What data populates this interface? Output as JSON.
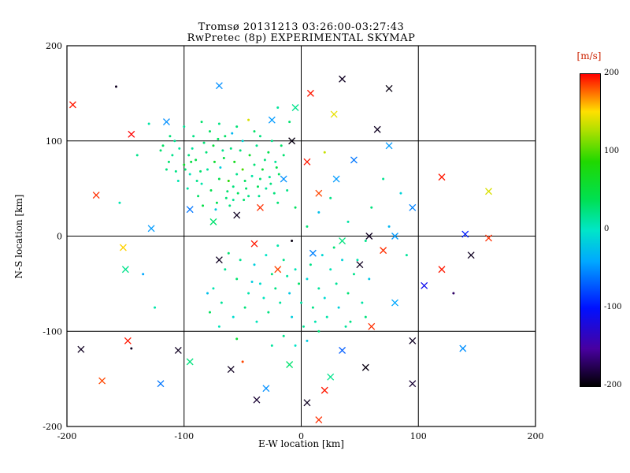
{
  "chart_data": {
    "type": "scatter",
    "title": "Tromsø 20131213 03:26:00-03:27:43",
    "subtitle": "RwPretec (8p) EXPERIMENTAL SKYMAP",
    "xlabel": "E-W location [km]",
    "ylabel": "N-S location [km]",
    "xlim": [
      -200,
      200
    ],
    "ylim": [
      -200,
      200
    ],
    "xticks": [
      -200,
      -100,
      0,
      100,
      200
    ],
    "yticks": [
      -200,
      -100,
      0,
      100,
      200
    ],
    "grid": true,
    "axis_color": "#000000",
    "background_color": "#ffffff",
    "marker_legend": {
      "d": "small dot echo",
      "x": "cross echo"
    },
    "colorbar": {
      "label": "[m/s]",
      "label_color": "#cc2200",
      "min": -200,
      "max": 200,
      "ticks": [
        200,
        100,
        0,
        -100,
        -200
      ],
      "stops": [
        [
          0.0,
          "#000000"
        ],
        [
          0.12,
          "#4800a0"
        ],
        [
          0.25,
          "#0010ff"
        ],
        [
          0.4,
          "#00a8ff"
        ],
        [
          0.5,
          "#00e6c8"
        ],
        [
          0.6,
          "#00e050"
        ],
        [
          0.72,
          "#20d800"
        ],
        [
          0.82,
          "#b0e000"
        ],
        [
          0.88,
          "#ffe000"
        ],
        [
          0.94,
          "#ff7000"
        ],
        [
          1.0,
          "#ff0000"
        ]
      ]
    },
    "points": [
      [
        -63,
        47,
        30,
        "d"
      ],
      [
        -58,
        52,
        25,
        "d"
      ],
      [
        -70,
        60,
        40,
        "d"
      ],
      [
        -55,
        65,
        20,
        "d"
      ],
      [
        -48,
        58,
        35,
        "d"
      ],
      [
        -80,
        70,
        15,
        "d"
      ],
      [
        -90,
        80,
        45,
        "d"
      ],
      [
        -40,
        75,
        28,
        "d"
      ],
      [
        -66,
        82,
        48,
        "d"
      ],
      [
        -52,
        90,
        26,
        "d"
      ],
      [
        -75,
        95,
        50,
        "d"
      ],
      [
        -85,
        55,
        10,
        "d"
      ],
      [
        -95,
        65,
        5,
        "d"
      ],
      [
        -100,
        75,
        60,
        "d"
      ],
      [
        -110,
        85,
        20,
        "d"
      ],
      [
        -35,
        60,
        28,
        "d"
      ],
      [
        -30,
        50,
        15,
        "d"
      ],
      [
        -45,
        42,
        22,
        "d"
      ],
      [
        -58,
        38,
        18,
        "d"
      ],
      [
        -72,
        35,
        40,
        "d"
      ],
      [
        -88,
        42,
        33,
        "d"
      ],
      [
        -97,
        50,
        12,
        "d"
      ],
      [
        -105,
        58,
        8,
        "d"
      ],
      [
        -115,
        70,
        25,
        "d"
      ],
      [
        -120,
        90,
        30,
        "d"
      ],
      [
        -108,
        100,
        18,
        "d"
      ],
      [
        -92,
        105,
        22,
        "d"
      ],
      [
        -78,
        110,
        35,
        "d"
      ],
      [
        -65,
        105,
        33,
        "d"
      ],
      [
        -50,
        100,
        -10,
        "d"
      ],
      [
        -38,
        95,
        20,
        "d"
      ],
      [
        -28,
        88,
        42,
        "d"
      ],
      [
        -22,
        78,
        16,
        "d"
      ],
      [
        -33,
        70,
        55,
        "d"
      ],
      [
        -44,
        85,
        60,
        "d"
      ],
      [
        -57,
        78,
        70,
        "d"
      ],
      [
        -69,
        72,
        -15,
        "d"
      ],
      [
        -81,
        88,
        26,
        "d"
      ],
      [
        -93,
        92,
        14,
        "d"
      ],
      [
        -62,
        58,
        90,
        "d"
      ],
      [
        -47,
        50,
        31,
        "d"
      ],
      [
        -36,
        42,
        19,
        "d"
      ],
      [
        -26,
        55,
        24,
        "d"
      ],
      [
        -19,
        65,
        37,
        "d"
      ],
      [
        -15,
        85,
        29,
        "d"
      ],
      [
        -25,
        100,
        21,
        "d"
      ],
      [
        -40,
        110,
        33,
        "d"
      ],
      [
        -55,
        115,
        27,
        "d"
      ],
      [
        -70,
        118,
        23,
        "d"
      ],
      [
        -85,
        120,
        31,
        "d"
      ],
      [
        -100,
        115,
        17,
        "d"
      ],
      [
        -112,
        105,
        26,
        "d"
      ],
      [
        -118,
        95,
        34,
        "d"
      ],
      [
        -60,
        92,
        24,
        "d"
      ],
      [
        -50,
        70,
        100,
        "d"
      ],
      [
        -42,
        63,
        12,
        "d"
      ],
      [
        -67,
        90,
        20,
        "d"
      ],
      [
        -74,
        78,
        60,
        "d"
      ],
      [
        -86,
        68,
        30,
        "d"
      ],
      [
        -96,
        85,
        25,
        "d"
      ],
      [
        -104,
        92,
        15,
        "d"
      ],
      [
        -54,
        45,
        35,
        "d"
      ],
      [
        -64,
        40,
        28,
        "d"
      ],
      [
        -77,
        48,
        42,
        "d"
      ],
      [
        -89,
        58,
        20,
        "d"
      ],
      [
        -99,
        70,
        30,
        "d"
      ],
      [
        -31,
        80,
        26,
        "d"
      ],
      [
        -21,
        72,
        44,
        "d"
      ],
      [
        -17,
        95,
        32,
        "d"
      ],
      [
        -45,
        122,
        140,
        "d"
      ],
      [
        -35,
        105,
        24,
        "d"
      ],
      [
        -59,
        108,
        -30,
        "d"
      ],
      [
        -71,
        102,
        36,
        "d"
      ],
      [
        -83,
        98,
        28,
        "d"
      ],
      [
        -94,
        78,
        48,
        "d"
      ],
      [
        -107,
        68,
        22,
        "d"
      ],
      [
        -113,
        78,
        30,
        "d"
      ],
      [
        -27,
        62,
        18,
        "d"
      ],
      [
        -23,
        45,
        26,
        "d"
      ],
      [
        -37,
        52,
        38,
        "d"
      ],
      [
        -49,
        38,
        30,
        "d"
      ],
      [
        -61,
        32,
        24,
        "d"
      ],
      [
        -73,
        28,
        -20,
        "d"
      ],
      [
        -84,
        32,
        46,
        "d"
      ],
      [
        -20,
        35,
        28,
        "d"
      ],
      [
        -12,
        48,
        22,
        "d"
      ],
      [
        -20,
        -10,
        10,
        "d"
      ],
      [
        -30,
        -20,
        0,
        "d"
      ],
      [
        -40,
        -30,
        -15,
        "d"
      ],
      [
        -15,
        -25,
        20,
        "d"
      ],
      [
        -5,
        -35,
        5,
        "d"
      ],
      [
        5,
        -45,
        -10,
        "d"
      ],
      [
        15,
        -55,
        15,
        "d"
      ],
      [
        -25,
        -40,
        25,
        "d"
      ],
      [
        -35,
        -50,
        -5,
        "d"
      ],
      [
        -45,
        -60,
        10,
        "d"
      ],
      [
        -55,
        -45,
        30,
        "d"
      ],
      [
        -65,
        -35,
        18,
        "d"
      ],
      [
        -75,
        -55,
        8,
        "d"
      ],
      [
        -10,
        -60,
        -20,
        "d"
      ],
      [
        0,
        -70,
        12,
        "d"
      ],
      [
        10,
        -75,
        22,
        "d"
      ],
      [
        20,
        -65,
        -8,
        "d"
      ],
      [
        30,
        -50,
        16,
        "d"
      ],
      [
        40,
        -60,
        28,
        "d"
      ],
      [
        25,
        -35,
        6,
        "d"
      ],
      [
        35,
        -25,
        -12,
        "d"
      ],
      [
        45,
        -40,
        20,
        "d"
      ],
      [
        -18,
        -70,
        14,
        "d"
      ],
      [
        -28,
        -80,
        24,
        "d"
      ],
      [
        -38,
        -90,
        4,
        "d"
      ],
      [
        -8,
        -85,
        -16,
        "d"
      ],
      [
        2,
        -95,
        18,
        "d"
      ],
      [
        12,
        -90,
        8,
        "d"
      ],
      [
        -48,
        -75,
        26,
        "d"
      ],
      [
        -58,
        -85,
        -6,
        "d"
      ],
      [
        -68,
        -70,
        16,
        "d"
      ],
      [
        -78,
        -80,
        36,
        "d"
      ],
      [
        22,
        -85,
        10,
        "d"
      ],
      [
        32,
        -75,
        -14,
        "d"
      ],
      [
        42,
        -90,
        22,
        "d"
      ],
      [
        52,
        -70,
        12,
        "d"
      ],
      [
        -15,
        -105,
        20,
        "d"
      ],
      [
        -5,
        -115,
        0,
        "d"
      ],
      [
        5,
        -110,
        -18,
        "d"
      ],
      [
        15,
        -100,
        26,
        "d"
      ],
      [
        -25,
        -115,
        14,
        "d"
      ],
      [
        -55,
        -108,
        55,
        "d"
      ],
      [
        -2,
        -50,
        33,
        "d"
      ],
      [
        8,
        -30,
        21,
        "d"
      ],
      [
        18,
        -20,
        -9,
        "d"
      ],
      [
        28,
        -12,
        27,
        "d"
      ],
      [
        -12,
        -42,
        13,
        "d"
      ],
      [
        -22,
        -55,
        23,
        "d"
      ],
      [
        -32,
        -65,
        3,
        "d"
      ],
      [
        -42,
        -48,
        -17,
        "d"
      ],
      [
        -52,
        -25,
        19,
        "d"
      ],
      [
        -62,
        -18,
        29,
        "d"
      ],
      [
        48,
        -25,
        9,
        "d"
      ],
      [
        58,
        -45,
        -21,
        "d"
      ],
      [
        38,
        -95,
        15,
        "d"
      ],
      [
        55,
        -85,
        25,
        "d"
      ],
      [
        -70,
        -95,
        5,
        "d"
      ],
      [
        -80,
        -60,
        -25,
        "d"
      ],
      [
        -140,
        85,
        20,
        "d"
      ],
      [
        -135,
        -40,
        -40,
        "d"
      ],
      [
        -125,
        -75,
        10,
        "d"
      ],
      [
        60,
        30,
        25,
        "d"
      ],
      [
        75,
        10,
        -30,
        "d"
      ],
      [
        90,
        -20,
        15,
        "d"
      ],
      [
        70,
        60,
        18,
        "d"
      ],
      [
        85,
        45,
        -12,
        "d"
      ],
      [
        -155,
        35,
        8,
        "d"
      ],
      [
        25,
        40,
        22,
        "d"
      ],
      [
        15,
        25,
        -25,
        "d"
      ],
      [
        40,
        15,
        12,
        "d"
      ],
      [
        55,
        -5,
        20,
        "d"
      ],
      [
        -5,
        30,
        35,
        "d"
      ],
      [
        5,
        10,
        28,
        "d"
      ],
      [
        -10,
        120,
        30,
        "d"
      ],
      [
        -20,
        135,
        15,
        "d"
      ],
      [
        -8,
        -5,
        -195,
        "d"
      ],
      [
        20,
        88,
        135,
        "d"
      ],
      [
        -50,
        -132,
        185,
        "d"
      ],
      [
        -158,
        157,
        -190,
        "d"
      ],
      [
        -145,
        -118,
        -190,
        "d"
      ],
      [
        130,
        -60,
        -170,
        "d"
      ],
      [
        -130,
        118,
        12,
        "d"
      ],
      [
        -195,
        138,
        195,
        "x"
      ],
      [
        -145,
        107,
        200,
        "x"
      ],
      [
        -175,
        43,
        190,
        "x"
      ],
      [
        -128,
        8,
        -45,
        "x"
      ],
      [
        -150,
        -35,
        20,
        "x"
      ],
      [
        -170,
        -152,
        185,
        "x"
      ],
      [
        -188,
        -119,
        -190,
        "x"
      ],
      [
        -120,
        -155,
        -60,
        "x"
      ],
      [
        -95,
        -132,
        25,
        "x"
      ],
      [
        -60,
        -140,
        -190,
        "x"
      ],
      [
        -30,
        -160,
        -50,
        "x"
      ],
      [
        5,
        -175,
        -190,
        "x"
      ],
      [
        20,
        -162,
        195,
        "x"
      ],
      [
        55,
        -138,
        -195,
        "x"
      ],
      [
        95,
        -110,
        -190,
        "x"
      ],
      [
        35,
        -120,
        -70,
        "x"
      ],
      [
        60,
        -95,
        190,
        "x"
      ],
      [
        80,
        -70,
        -40,
        "x"
      ],
      [
        105,
        -52,
        -110,
        "x"
      ],
      [
        120,
        -35,
        195,
        "x"
      ],
      [
        145,
        -20,
        -190,
        "x"
      ],
      [
        160,
        -2,
        190,
        "x"
      ],
      [
        140,
        2,
        -95,
        "x"
      ],
      [
        160,
        47,
        140,
        "x"
      ],
      [
        120,
        62,
        195,
        "x"
      ],
      [
        95,
        30,
        -55,
        "x"
      ],
      [
        75,
        95,
        -45,
        "x"
      ],
      [
        65,
        112,
        -190,
        "x"
      ],
      [
        45,
        80,
        -60,
        "x"
      ],
      [
        30,
        60,
        -45,
        "x"
      ],
      [
        15,
        45,
        185,
        "x"
      ],
      [
        5,
        78,
        195,
        "x"
      ],
      [
        -8,
        100,
        -195,
        "x"
      ],
      [
        -15,
        60,
        -50,
        "x"
      ],
      [
        -35,
        30,
        190,
        "x"
      ],
      [
        -55,
        22,
        -190,
        "x"
      ],
      [
        -75,
        15,
        30,
        "x"
      ],
      [
        -95,
        28,
        -60,
        "x"
      ],
      [
        -115,
        120,
        -50,
        "x"
      ],
      [
        -25,
        122,
        -45,
        "x"
      ],
      [
        -5,
        135,
        20,
        "x"
      ],
      [
        28,
        128,
        145,
        "x"
      ],
      [
        58,
        0,
        -190,
        "x"
      ],
      [
        80,
        0,
        -45,
        "x"
      ],
      [
        -40,
        -8,
        195,
        "x"
      ],
      [
        -70,
        -25,
        -190,
        "x"
      ],
      [
        -20,
        -35,
        185,
        "x"
      ],
      [
        10,
        -18,
        -55,
        "x"
      ],
      [
        35,
        -5,
        25,
        "x"
      ],
      [
        50,
        -30,
        -190,
        "x"
      ],
      [
        70,
        -15,
        190,
        "x"
      ],
      [
        -152,
        -12,
        155,
        "x"
      ],
      [
        138,
        -118,
        -50,
        "x"
      ],
      [
        25,
        -148,
        20,
        "x"
      ],
      [
        -10,
        -135,
        30,
        "x"
      ],
      [
        95,
        -155,
        -185,
        "x"
      ],
      [
        -148,
        -110,
        195,
        "x"
      ],
      [
        -105,
        -120,
        -190,
        "x"
      ],
      [
        15,
        -193,
        190,
        "x"
      ],
      [
        -38,
        -172,
        -185,
        "x"
      ],
      [
        -70,
        158,
        -50,
        "x"
      ],
      [
        35,
        165,
        -190,
        "x"
      ],
      [
        75,
        155,
        -195,
        "x"
      ],
      [
        8,
        150,
        195,
        "x"
      ]
    ]
  }
}
